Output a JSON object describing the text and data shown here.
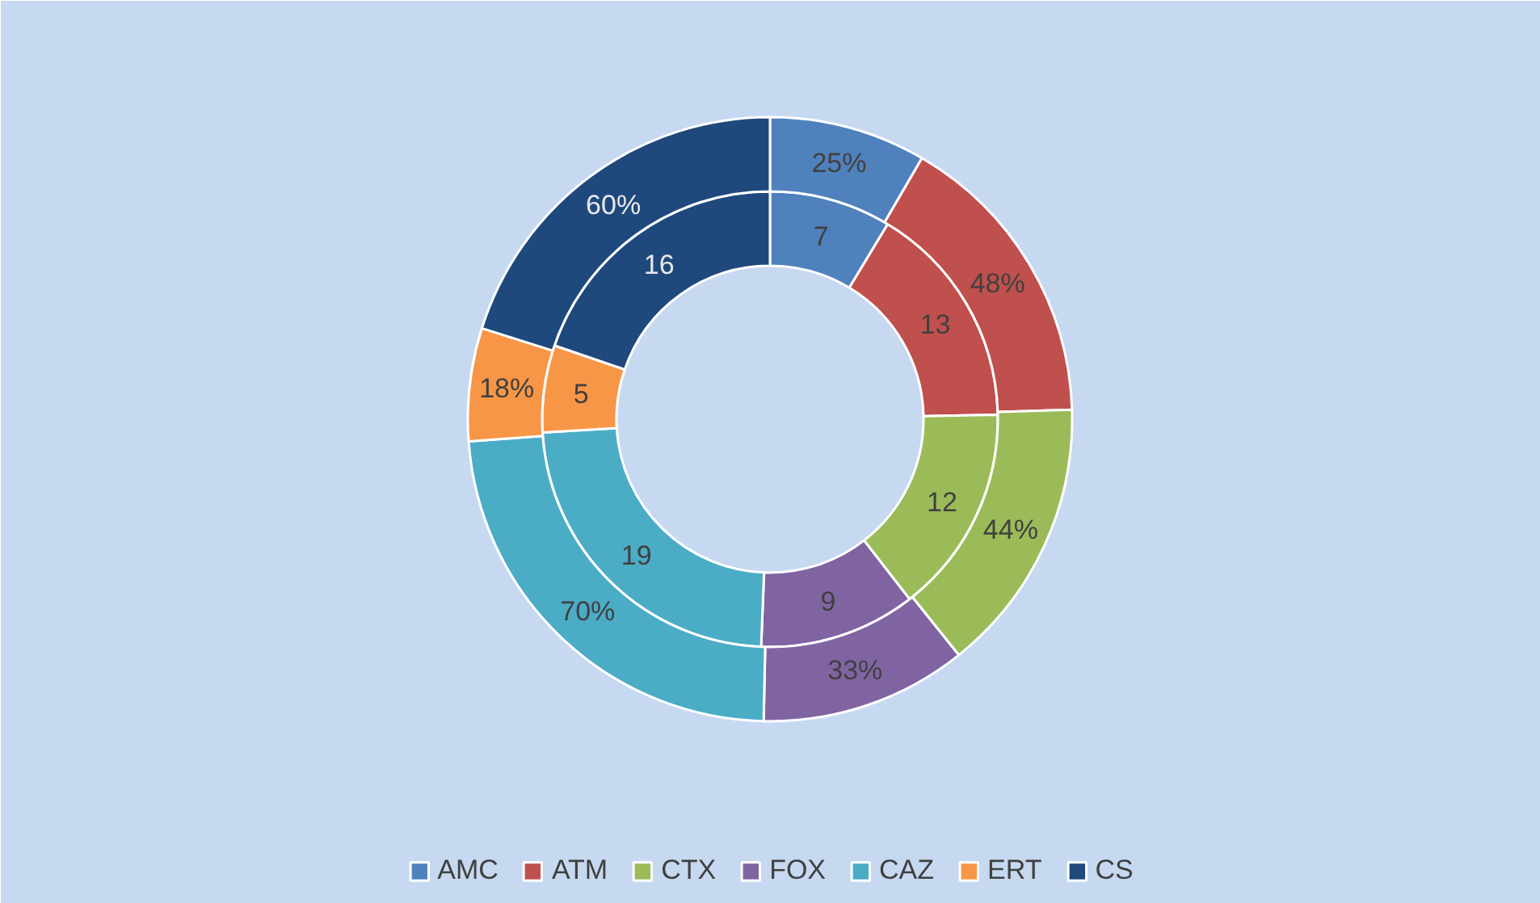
{
  "chart_data": {
    "type": "donut",
    "categories": [
      "AMC",
      "ATM",
      "CTX",
      "FOX",
      "CAZ",
      "ERT",
      "CS"
    ],
    "colors": [
      "#4f81bd",
      "#c0504d",
      "#9bbb59",
      "#8064a2",
      "#4bacc6",
      "#f79646",
      "#1f497d"
    ],
    "series": [
      {
        "values": [
          7,
          13,
          12,
          9,
          19,
          5,
          16
        ],
        "value_labels": [
          "7",
          "13",
          "12",
          "9",
          "19",
          "5",
          "16"
        ]
      },
      {
        "values": [
          25,
          48,
          44,
          33,
          70,
          18,
          60
        ],
        "value_labels": [
          "25%",
          "48%",
          "44%",
          "33%",
          "70%",
          "18%",
          "60%"
        ]
      }
    ],
    "legend": "bottom"
  }
}
